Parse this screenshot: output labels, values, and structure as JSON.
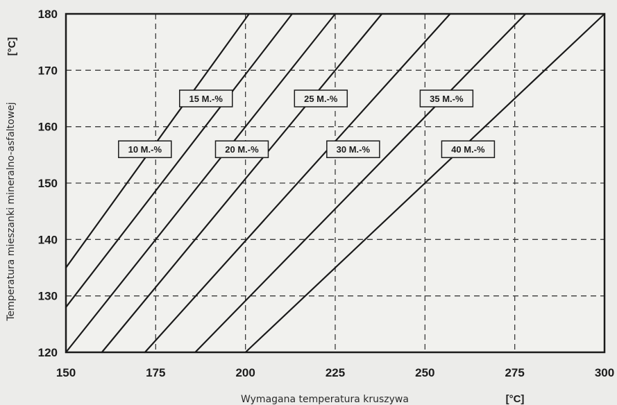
{
  "chart_data": {
    "type": "line",
    "title": "",
    "xlabel": "Wymagana temperatura kruszywa",
    "xunit": "[°C]",
    "ylabel": "Temperatura mieszanki mineralno-asfaltowej",
    "yunit": "[°C]",
    "xlim": [
      150,
      300
    ],
    "ylim": [
      120,
      180
    ],
    "xticks": [
      "150",
      "175",
      "200",
      "225",
      "250",
      "275",
      "300"
    ],
    "yticks": [
      "120",
      "130",
      "140",
      "150",
      "160",
      "170",
      "180"
    ],
    "grid": true,
    "series": [
      {
        "name": "10 M.-%",
        "points": [
          [
            150,
            135
          ],
          [
            201,
            180
          ]
        ]
      },
      {
        "name": "15 M.-%",
        "points": [
          [
            150,
            128
          ],
          [
            213,
            180
          ]
        ]
      },
      {
        "name": "20 M.-%",
        "points": [
          [
            150,
            120
          ],
          [
            225,
            180
          ]
        ]
      },
      {
        "name": "25 M.-%",
        "points": [
          [
            160,
            120
          ],
          [
            238,
            180
          ]
        ]
      },
      {
        "name": "30 M.-%",
        "points": [
          [
            172,
            120
          ],
          [
            257,
            180
          ]
        ]
      },
      {
        "name": "35 M.-%",
        "points": [
          [
            186,
            120
          ],
          [
            278,
            180
          ]
        ]
      },
      {
        "name": "40 M.-%",
        "points": [
          [
            200,
            120
          ],
          [
            300,
            180
          ]
        ]
      }
    ]
  }
}
